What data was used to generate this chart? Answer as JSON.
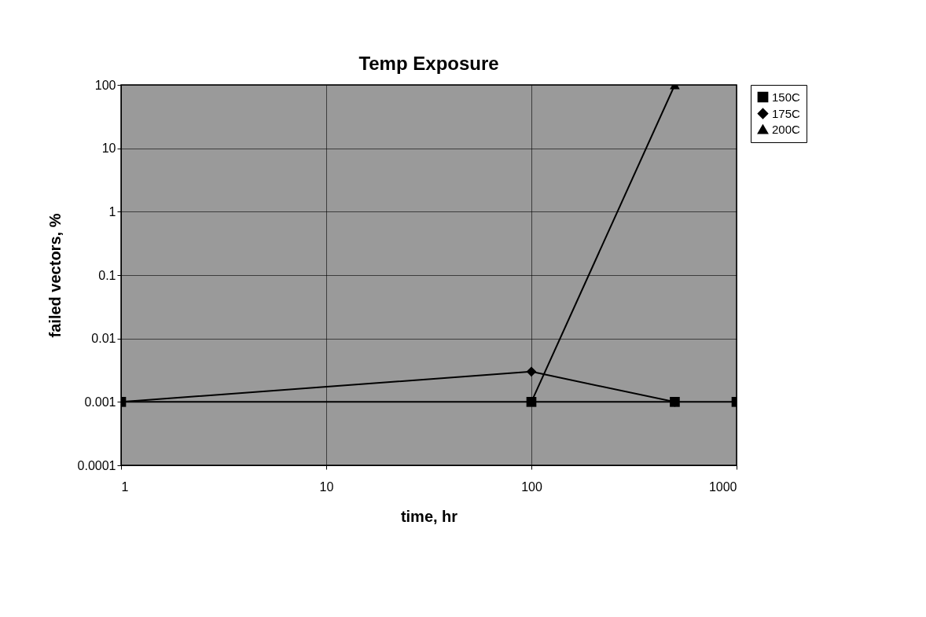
{
  "chart_data": {
    "type": "line",
    "title": "Temp Exposure",
    "xlabel": "time, hr",
    "ylabel": "failed vectors, %",
    "log": "xy",
    "xlim": [
      1,
      1000
    ],
    "xticks": [
      1,
      10,
      100,
      1000
    ],
    "ylim": [
      0.0001,
      100
    ],
    "yticks": [
      0.0001,
      0.001,
      0.01,
      0.1,
      1,
      10,
      100
    ],
    "grid": true,
    "legend": "right",
    "series": [
      {
        "name": "150C",
        "color": "#000000",
        "marker": "square",
        "x": [
          1,
          100,
          500,
          1000
        ],
        "values": [
          0.001,
          0.001,
          0.001,
          0.001
        ]
      },
      {
        "name": "175C",
        "color": "#000000",
        "marker": "diamond",
        "x": [
          1,
          100,
          500
        ],
        "values": [
          0.001,
          0.003,
          0.001
        ]
      },
      {
        "name": "200C",
        "color": "#000000",
        "marker": "triangle",
        "x": [
          100,
          500
        ],
        "values": [
          0.001,
          100
        ]
      }
    ]
  }
}
